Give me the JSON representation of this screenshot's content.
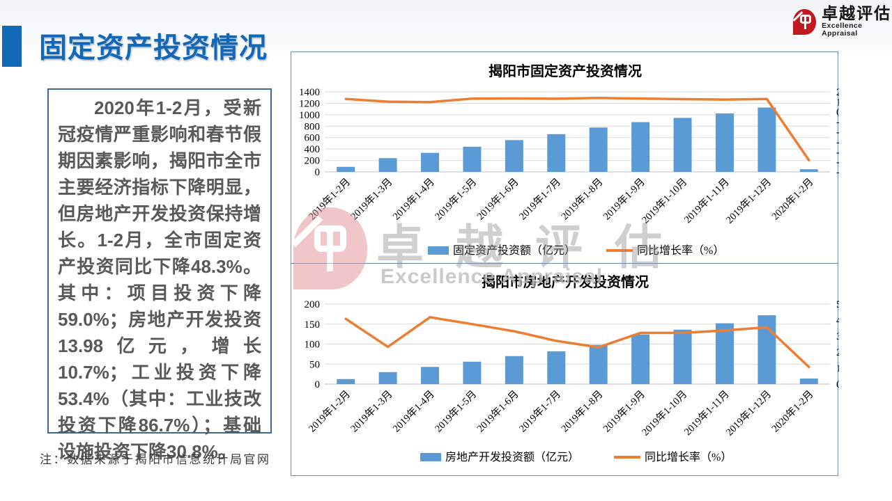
{
  "page": {
    "title": "固定资产投资情况",
    "note": "注：数据来源于揭阳市信息统计局官网"
  },
  "logo": {
    "name": "卓越评估",
    "subtitle": "Excellence Appraisal"
  },
  "watermark": {
    "text": "卓越评估",
    "subtext": "Excellence Appraisal"
  },
  "summary": {
    "text": "2020年1-2月，受新冠疫情严重影响和春节假期因素影响，揭阳市全市主要经济指标下降明显，但房地产开发投资保持增长。1-2月，全市固定资产投资同比下降48.3%。其中：项目投资下降59.0%；房地产开发投资13.98亿元，增长10.7%；工业投资下降53.4%（其中：工业技改投资下降86.7%）；基础设施投资下降30.8%。"
  },
  "colors": {
    "accent": "#1068B7",
    "bar": "#5B9BD5",
    "line": "#ED7D31",
    "grid": "#D9D9D9",
    "axis": "#BFBFBF",
    "panel_border": "#6B93B5",
    "logo_red": "#C01920"
  },
  "chart_data": [
    {
      "type": "bar+line",
      "title": "揭阳市固定资产投资情况",
      "categories": [
        "2019年1-2月",
        "2019年1-3月",
        "2019年1-4月",
        "2019年1-5月",
        "2019年1-6月",
        "2019年1-7月",
        "2019年1-8月",
        "2019年1-9月",
        "2019年1-10月",
        "2019年1-11月",
        "2019年1-12月",
        "2020年1-2月"
      ],
      "series": [
        {
          "name": "固定资产投资额（亿元）",
          "type": "bar",
          "axis": "left",
          "values": [
            88,
            240,
            333,
            440,
            556,
            660,
            776,
            870,
            944,
            1022,
            1126,
            46
          ]
        },
        {
          "name": "同比增长率（%）",
          "type": "line",
          "axis": "right",
          "values": [
            12.9,
            10.2,
            9.8,
            13.2,
            13.4,
            13.1,
            13.9,
            13.3,
            12.7,
            12.3,
            12.9,
            -48.3
          ]
        }
      ],
      "left_axis": {
        "min": 0,
        "max": 1400,
        "step": 200
      },
      "right_axis": {
        "min": -60,
        "max": 20,
        "step": 10
      },
      "grid": true,
      "legend_position": "bottom"
    },
    {
      "type": "bar+line",
      "title": "揭阳市房地产开发投资情况",
      "categories": [
        "2019年1-2月",
        "2019年1-3月",
        "2019年1-4月",
        "2019年1-5月",
        "2019年1-6月",
        "2019年1-7月",
        "2019年1-8月",
        "2019年1-9月",
        "2019年1-10月",
        "2019年1-11月",
        "2019年1-12月",
        "2020年1-2月"
      ],
      "series": [
        {
          "name": "房地产开发投资额（亿元）",
          "type": "bar",
          "axis": "left",
          "values": [
            12.6,
            30,
            43,
            56,
            70,
            82,
            98,
            124,
            136,
            152,
            172,
            13.98
          ]
        },
        {
          "name": "同比增长率（%）",
          "type": "line",
          "axis": "right",
          "values": [
            40.8,
            23.3,
            41.8,
            37.5,
            33,
            27,
            23,
            32,
            32,
            33.5,
            35.5,
            10.7
          ]
        }
      ],
      "left_axis": {
        "min": 0,
        "max": 200,
        "step": 50
      },
      "right_axis": {
        "min": 0,
        "max": 50,
        "step": 10
      },
      "grid": true,
      "legend_position": "bottom"
    }
  ]
}
